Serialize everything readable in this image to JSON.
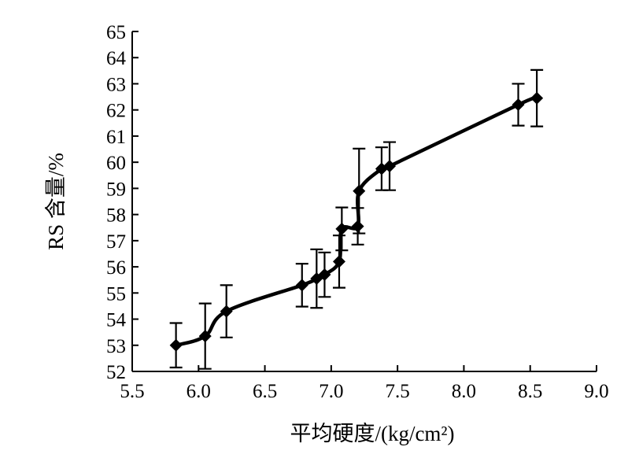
{
  "chart_data": {
    "type": "line",
    "title": "",
    "xlabel": "平均硬度/(kg/cm²)",
    "ylabel": "RS 含量/%",
    "xlim": [
      5.5,
      9.0
    ],
    "ylim": [
      52,
      65
    ],
    "xticks": [
      5.5,
      6.0,
      6.5,
      7.0,
      7.5,
      8.0,
      8.5,
      9.0
    ],
    "yticks": [
      52,
      53,
      54,
      55,
      56,
      57,
      58,
      59,
      60,
      61,
      62,
      63,
      64,
      65
    ],
    "xtick_labels": [
      "5.5",
      "6.0",
      "6.5",
      "7.0",
      "7.5",
      "8.0",
      "8.5",
      "9.0"
    ],
    "ytick_labels": [
      "52",
      "53",
      "54",
      "55",
      "56",
      "57",
      "58",
      "59",
      "60",
      "61",
      "62",
      "63",
      "64",
      "65"
    ],
    "grid": false,
    "series": [
      {
        "name": "RS",
        "marker": "diamond",
        "color": "#000000",
        "points": [
          {
            "x": 5.83,
            "y": 53.0,
            "err": 0.85
          },
          {
            "x": 6.05,
            "y": 53.35,
            "err": 1.25
          },
          {
            "x": 6.21,
            "y": 54.3,
            "err": 1.0
          },
          {
            "x": 6.78,
            "y": 55.3,
            "err": 0.82
          },
          {
            "x": 6.89,
            "y": 55.55,
            "err": 1.12
          },
          {
            "x": 6.95,
            "y": 55.7,
            "err": 0.85
          },
          {
            "x": 7.06,
            "y": 56.2,
            "err": 1.0
          },
          {
            "x": 7.08,
            "y": 57.45,
            "err": 0.82
          },
          {
            "x": 7.2,
            "y": 57.55,
            "err": 0.7
          },
          {
            "x": 7.21,
            "y": 58.9,
            "err": 1.62
          },
          {
            "x": 7.38,
            "y": 59.75,
            "err": 0.82
          },
          {
            "x": 7.44,
            "y": 59.85,
            "err": 0.92
          },
          {
            "x": 8.41,
            "y": 62.2,
            "err": 0.8
          },
          {
            "x": 8.55,
            "y": 62.45,
            "err": 1.08
          }
        ]
      }
    ]
  }
}
